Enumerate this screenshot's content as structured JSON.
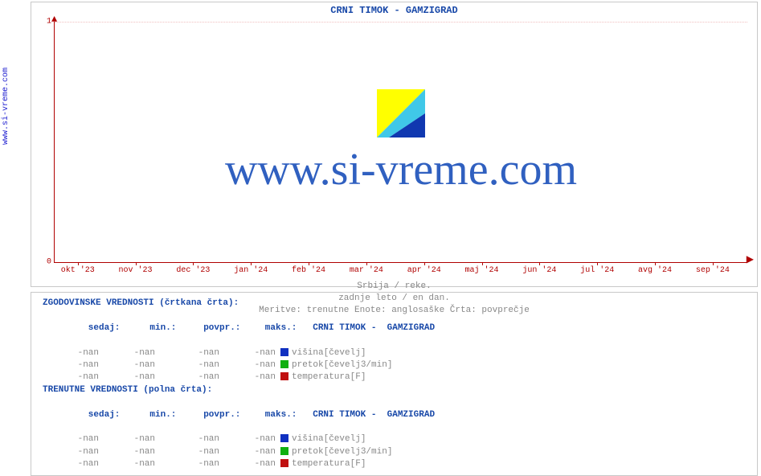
{
  "side_link": "www.si-vreme.com",
  "chart": {
    "title": "CRNI TIMOK -  GAMZIGRAD",
    "type": "line",
    "ylim": [
      0,
      1
    ],
    "yticks": [
      0,
      1
    ],
    "xticks": [
      "okt '23",
      "nov '23",
      "dec '23",
      "jan '24",
      "feb '24",
      "mar '24",
      "apr '24",
      "maj '24",
      "jun '24",
      "jul '24",
      "avg '24",
      "sep '24"
    ],
    "grid_color": "#f0c0c0",
    "axis_color": "#b00000",
    "background_color": "#ffffff",
    "caption_line1": "Srbija / reke.",
    "caption_line2": "zadnje leto / en dan.",
    "caption_line3": "Meritve: trenutne  Enote: anglosaške  Črta: povprečje",
    "watermark_text": "www.si-vreme.com",
    "logo_colors": {
      "tri1": "#ffff00",
      "tri2": "#40c8e8",
      "tri3": "#1038b0"
    }
  },
  "legend": {
    "hist_heading": "ZGODOVINSKE VREDNOSTI (črtkana črta):",
    "curr_heading": "TRENUTNE VREDNOSTI (polna črta):",
    "cols": {
      "now": "sedaj:",
      "min": "min.:",
      "avg": "povpr.:",
      "max": "maks.:"
    },
    "station": "CRNI TIMOK -  GAMZIGRAD",
    "series": [
      {
        "name": "višina[čevelj]",
        "color": "#1030c0"
      },
      {
        "name": "pretok[čevelj3/min]",
        "color": "#10b010"
      },
      {
        "name": "temperatura[F]",
        "color": "#c01010"
      }
    ],
    "hist_rows": [
      {
        "now": "-nan",
        "min": "-nan",
        "avg": "-nan",
        "max": "-nan"
      },
      {
        "now": "-nan",
        "min": "-nan",
        "avg": "-nan",
        "max": "-nan"
      },
      {
        "now": "-nan",
        "min": "-nan",
        "avg": "-nan",
        "max": "-nan"
      }
    ],
    "curr_rows": [
      {
        "now": "-nan",
        "min": "-nan",
        "avg": "-nan",
        "max": "-nan"
      },
      {
        "now": "-nan",
        "min": "-nan",
        "avg": "-nan",
        "max": "-nan"
      },
      {
        "now": "-nan",
        "min": "-nan",
        "avg": "-nan",
        "max": "-nan"
      }
    ]
  }
}
